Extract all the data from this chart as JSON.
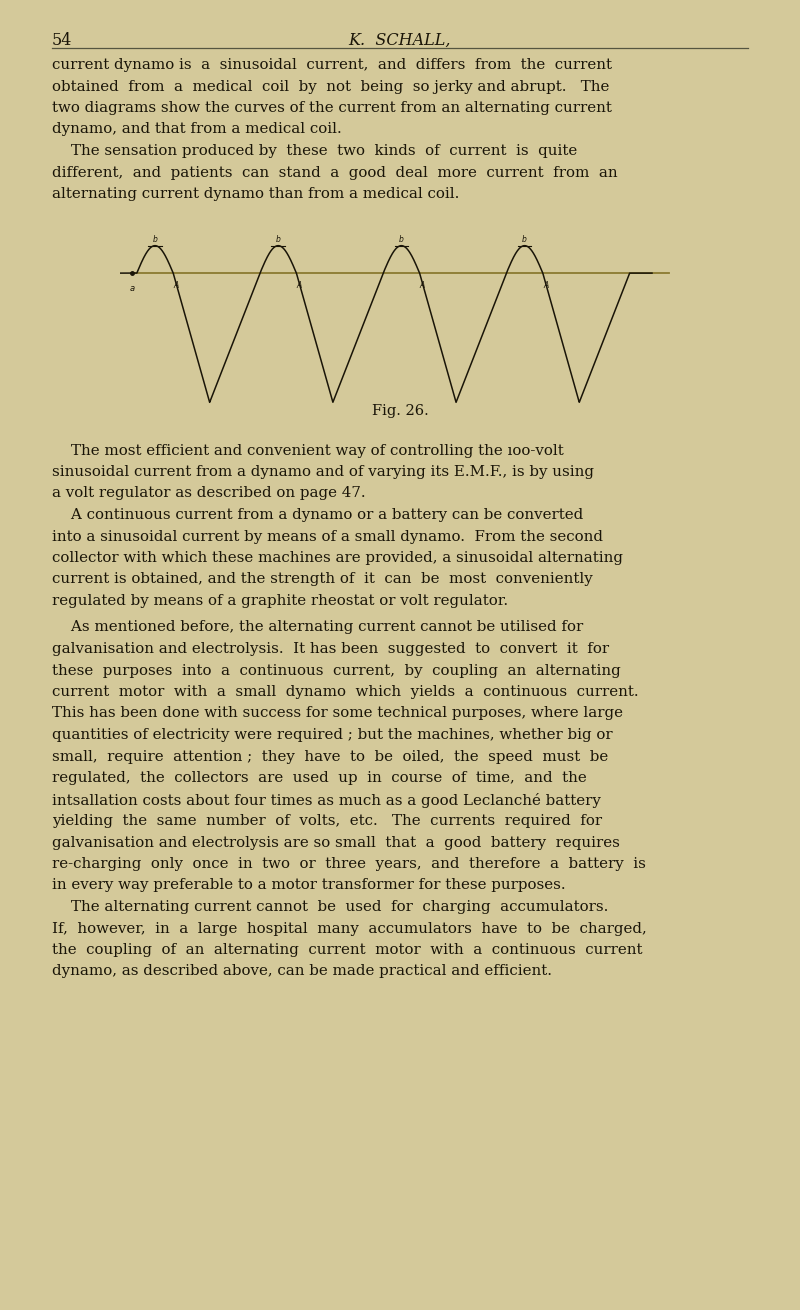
{
  "page_number": "54",
  "header_title": "K.  SCHALL,",
  "background_color": "#d4c99a",
  "text_color": "#1a1508",
  "fig_label": "Fig. 26.",
  "curve_color": "#1a1508",
  "baseline_color": "#8a7a30",
  "text_lines": [
    "current dynamo is  a  sinusoidal  current,  and  differs  from  the  current",
    "obtained  from  a  medical  coil  by  not  being  so jerky and abrupt.   The",
    "two diagrams show the curves of the current from an alternating current",
    "dynamo, and that from a medical coil.",
    "    The sensation produced by  these  two  kinds  of  current  is  quite",
    "different,  and  patients  can  stand  a  good  deal  more  current  from  an",
    "alternating current dynamo than from a medical coil.",
    "",
    "",
    "",
    "",
    "    The most efficient and convenient way of controlling the ıoo-volt",
    "sinusoidal current from a dynamo and of varying its E.M.F., is by using",
    "a volt regulator as described on page 47.",
    "    A continuous current from a dynamo or a battery can be converted",
    "into a sinusoidal current by means of a small dynamo.  From the second",
    "collector with which these machines are provided, a sinusoidal alternating",
    "current is obtained, and the strength of  it  can  be  most  conveniently",
    "regulated by means of a graphite rheostat or volt regulator.",
    "",
    "    As mentioned before, the alternating current cannot be utilised for",
    "galvanisation and electrolysis.  It has been  suggested  to  convert  it  for",
    "these  purposes  into  a  continuous  current,  by  coupling  an  alternating",
    "current  motor  with  a  small  dynamo  which  yields  a  continuous  current.",
    "This has been done with success for some technical purposes, where large",
    "quantities of electricity were required ; but the machines, whether big or",
    "small,  require  attention ;  they  have  to  be  oiled,  the  speed  must  be",
    "regulated,  the  collectors  are  used  up  in  course  of  time,  and  the",
    "intsallation costs about four times as much as a good Leclanché battery",
    "yielding  the  same  number  of  volts,  etc.   The  currents  required  for",
    "galvanisation and electrolysis are so small  that  a  good  battery  requires",
    "re-charging  only  once  in  two  or  three  years,  and  therefore  a  battery  is",
    "in every way preferable to a motor transformer for these purposes.",
    "    The alternating current cannot  be  used  for  charging  accumulators.",
    "If,  however,  in  a  large  hospital  many  accumulators  have  to  be  charged,",
    "the  coupling  of  an  alternating  current  motor  with  a  continuous  current",
    "dynamo, as described above, can be made practical and efficient."
  ]
}
